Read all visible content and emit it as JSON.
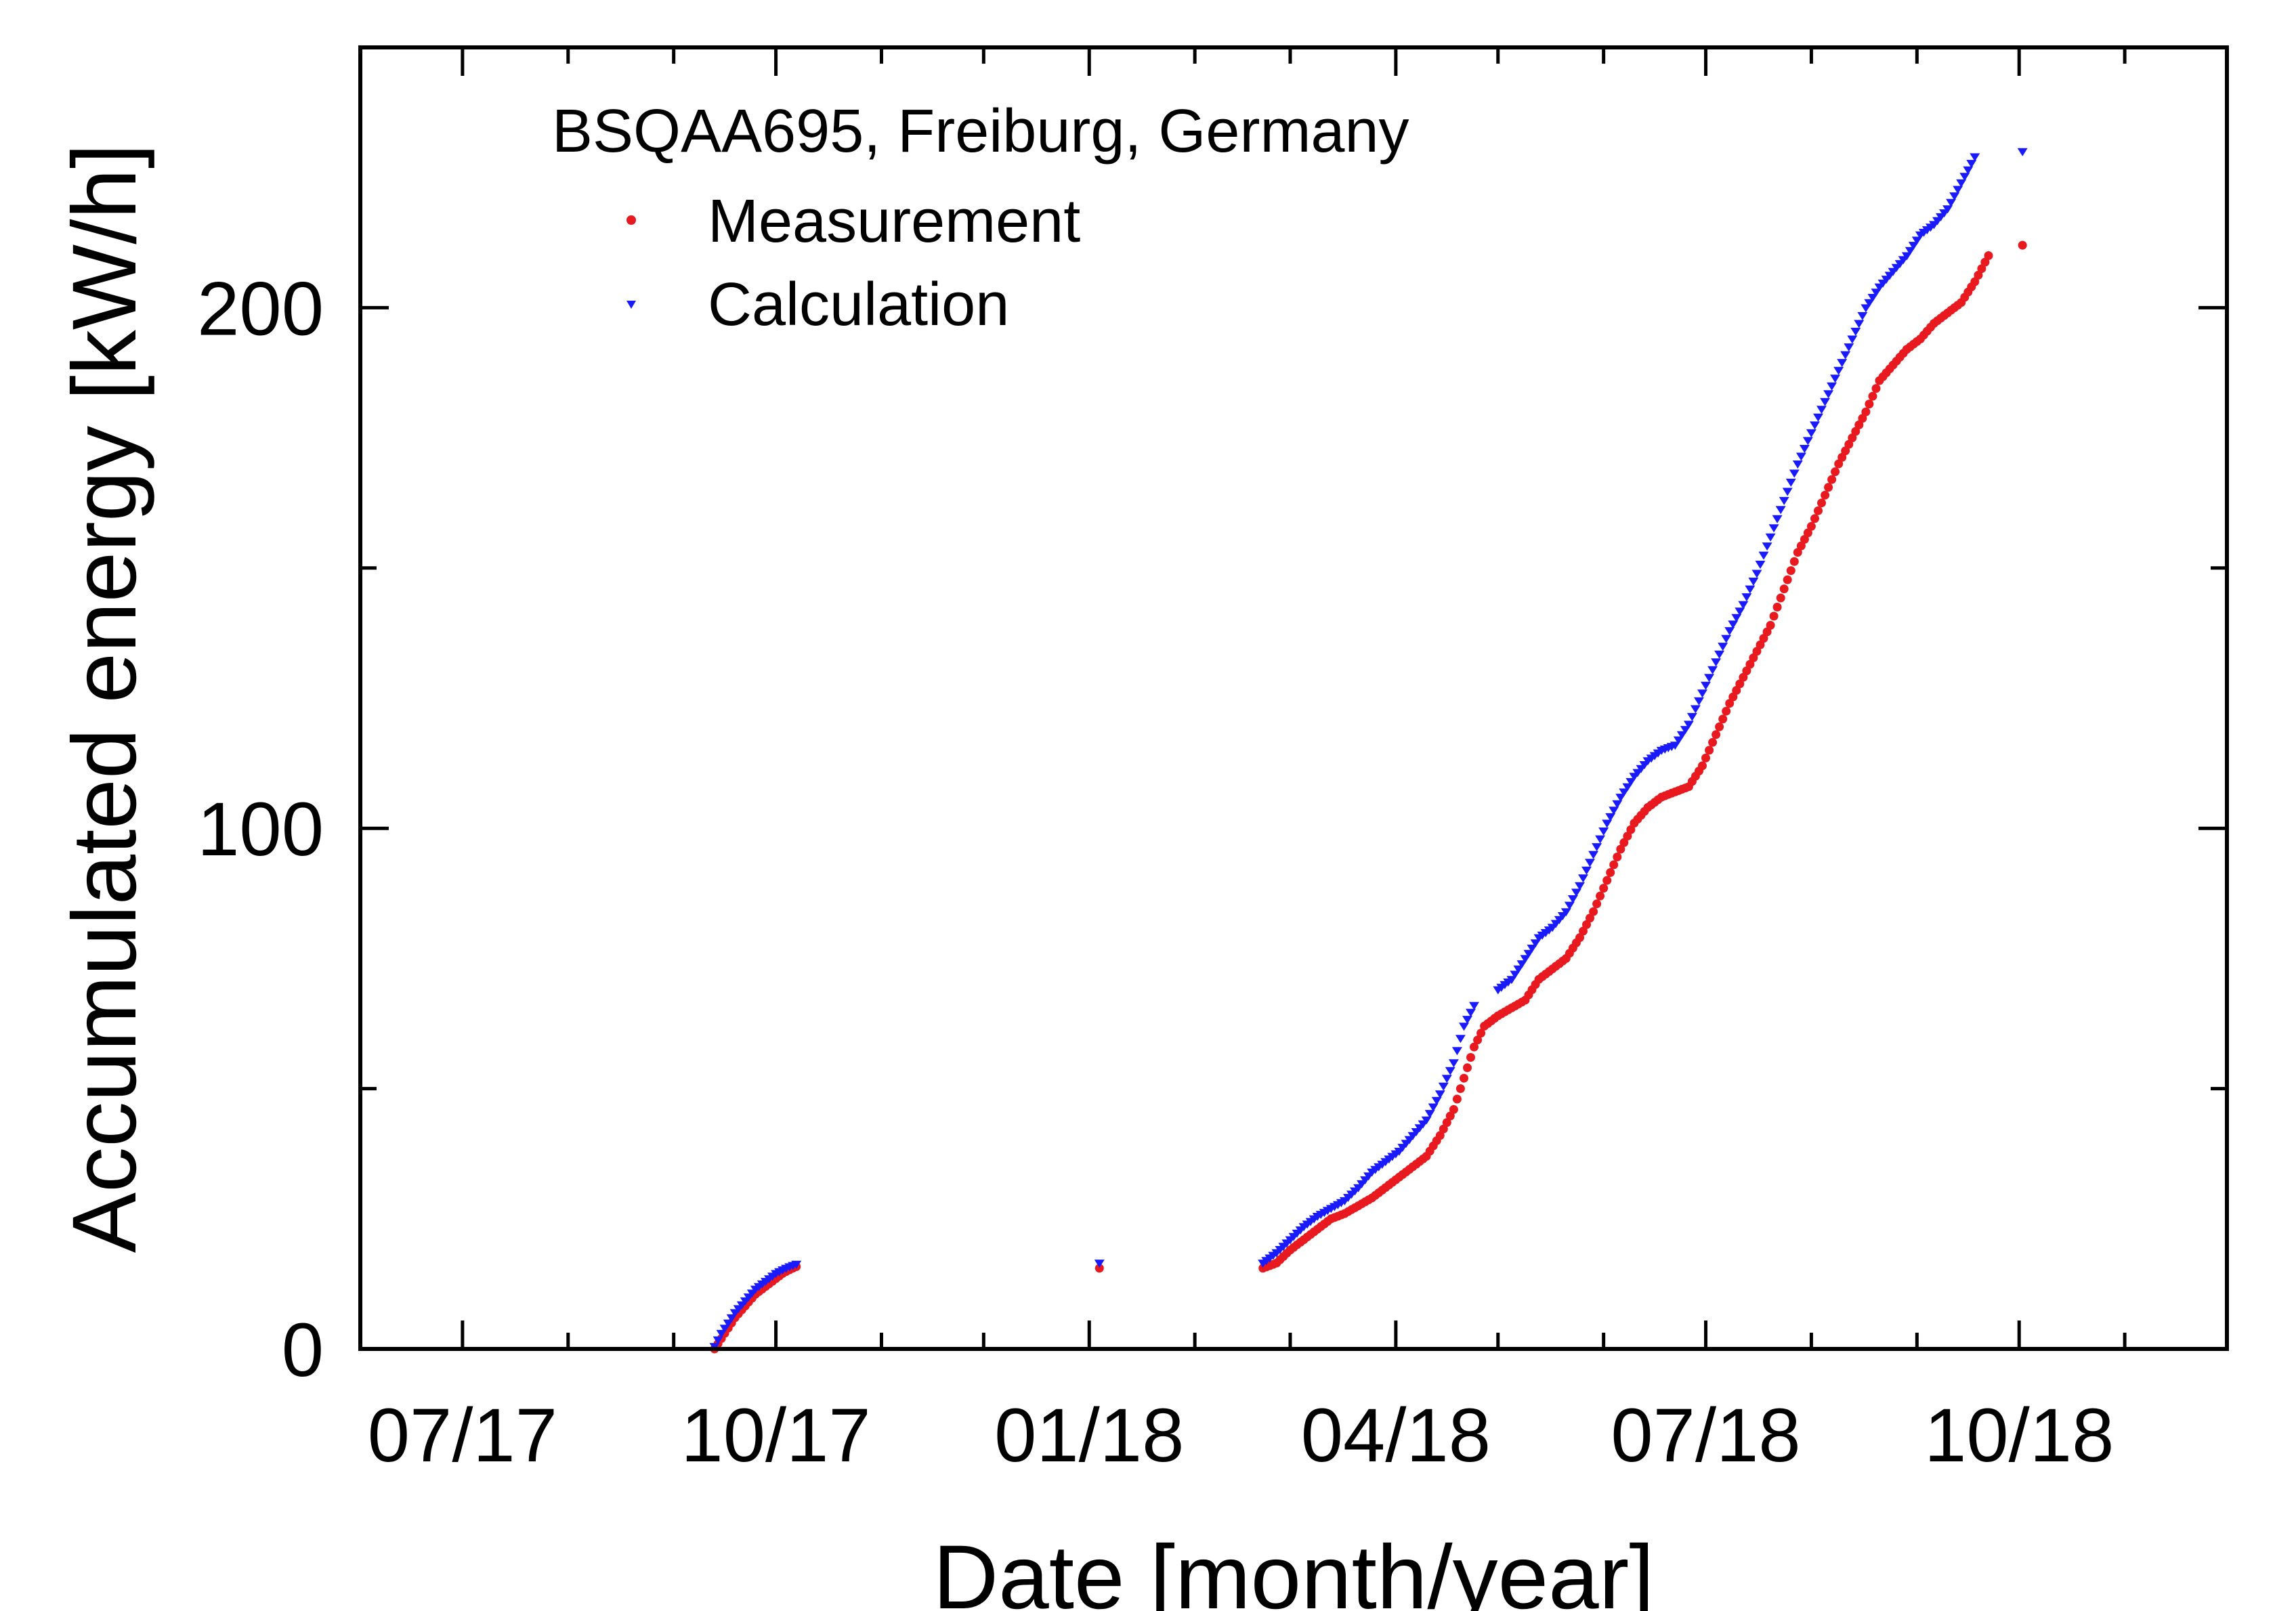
{
  "chart_data": {
    "type": "scatter",
    "title": "",
    "legend_title": "BSQAA695, Freiburg, Germany",
    "legend_position": "top-left",
    "grid": false,
    "xlabel": "Date [month/year]",
    "ylabel": "Accumulated energy [kW/h]",
    "xlim": [
      "2017-06-01",
      "2018-12-01"
    ],
    "ylim": [
      0,
      250
    ],
    "x_major_ticks": [
      "2017-07-01",
      "2017-10-01",
      "2018-01-01",
      "2018-04-01",
      "2018-07-01",
      "2018-10-01"
    ],
    "x_tick_labels": [
      "07/17",
      "10/17",
      "01/18",
      "04/18",
      "07/18",
      "10/18"
    ],
    "x_minor_ticks": [
      "2017-06-01",
      "2017-08-01",
      "2017-09-01",
      "2017-11-01",
      "2017-12-01",
      "2018-02-01",
      "2018-03-01",
      "2018-05-01",
      "2018-06-01",
      "2018-08-01",
      "2018-09-01",
      "2018-11-01",
      "2018-12-01"
    ],
    "y_major_ticks": [
      0,
      100,
      200
    ],
    "y_tick_labels": [
      "0",
      "100",
      "200"
    ],
    "y_minor_ticks": [
      50,
      150,
      250
    ],
    "series": [
      {
        "name": "Measurement",
        "color": "#e8191f",
        "marker": "dot",
        "points": [
          [
            "2017-09-13",
            0
          ],
          [
            "2017-09-15",
            2
          ],
          [
            "2017-09-17",
            4
          ],
          [
            "2017-09-19",
            6
          ],
          [
            "2017-09-21",
            7.5
          ],
          [
            "2017-09-23",
            9
          ],
          [
            "2017-09-25",
            10.5
          ],
          [
            "2017-09-27",
            11.5
          ],
          [
            "2017-09-29",
            12.5
          ],
          [
            "2017-10-01",
            13.5
          ],
          [
            "2017-10-03",
            14.5
          ],
          [
            "2017-10-05",
            15.2
          ],
          [
            "2017-10-07",
            15.8
          ],
          [
            "2018-01-04",
            15.5
          ],
          [
            "2018-02-21",
            15.5
          ],
          [
            "2018-02-25",
            16.5
          ],
          [
            "2018-03-01",
            19
          ],
          [
            "2018-03-05",
            21
          ],
          [
            "2018-03-09",
            23
          ],
          [
            "2018-03-13",
            25
          ],
          [
            "2018-03-17",
            26
          ],
          [
            "2018-03-21",
            27.5
          ],
          [
            "2018-03-25",
            29
          ],
          [
            "2018-03-29",
            31
          ],
          [
            "2018-04-02",
            33
          ],
          [
            "2018-04-06",
            35
          ],
          [
            "2018-04-10",
            37
          ],
          [
            "2018-04-14",
            41
          ],
          [
            "2018-04-18",
            46
          ],
          [
            "2018-04-21",
            52
          ],
          [
            "2018-04-24",
            58
          ],
          [
            "2018-04-27",
            62
          ],
          [
            "2018-05-01",
            64
          ],
          [
            "2018-05-05",
            65.5
          ],
          [
            "2018-05-09",
            67
          ],
          [
            "2018-05-13",
            71
          ],
          [
            "2018-05-17",
            73
          ],
          [
            "2018-05-21",
            75
          ],
          [
            "2018-05-25",
            79
          ],
          [
            "2018-05-29",
            84
          ],
          [
            "2018-06-02",
            90
          ],
          [
            "2018-06-06",
            96
          ],
          [
            "2018-06-10",
            101
          ],
          [
            "2018-06-14",
            104
          ],
          [
            "2018-06-18",
            106
          ],
          [
            "2018-06-22",
            107
          ],
          [
            "2018-06-26",
            108
          ],
          [
            "2018-06-30",
            112
          ],
          [
            "2018-07-04",
            118
          ],
          [
            "2018-07-08",
            124
          ],
          [
            "2018-07-12",
            129
          ],
          [
            "2018-07-16",
            134
          ],
          [
            "2018-07-20",
            139
          ],
          [
            "2018-07-24",
            146
          ],
          [
            "2018-07-28",
            153
          ],
          [
            "2018-08-01",
            158
          ],
          [
            "2018-08-05",
            164
          ],
          [
            "2018-08-09",
            170
          ],
          [
            "2018-08-13",
            175
          ],
          [
            "2018-08-17",
            180
          ],
          [
            "2018-08-21",
            186
          ],
          [
            "2018-08-25",
            189
          ],
          [
            "2018-08-29",
            192
          ],
          [
            "2018-09-02",
            194
          ],
          [
            "2018-09-06",
            197
          ],
          [
            "2018-09-10",
            199
          ],
          [
            "2018-09-14",
            201
          ],
          [
            "2018-09-18",
            205
          ],
          [
            "2018-09-22",
            210
          ],
          [
            "2018-10-02",
            212
          ]
        ]
      },
      {
        "name": "Calculation",
        "color": "#1a1aff",
        "marker": "triangle-down",
        "points": [
          [
            "2017-09-13",
            0.5
          ],
          [
            "2017-09-15",
            3
          ],
          [
            "2017-09-17",
            5
          ],
          [
            "2017-09-19",
            7
          ],
          [
            "2017-09-21",
            8.5
          ],
          [
            "2017-09-23",
            10
          ],
          [
            "2017-09-25",
            11.5
          ],
          [
            "2017-09-27",
            12.5
          ],
          [
            "2017-09-29",
            13.5
          ],
          [
            "2017-10-01",
            14.5
          ],
          [
            "2017-10-03",
            15.2
          ],
          [
            "2017-10-05",
            15.8
          ],
          [
            "2017-10-07",
            16.3
          ],
          [
            "2018-01-04",
            16.5
          ],
          [
            "2018-02-21",
            16.5
          ],
          [
            "2018-02-25",
            18.5
          ],
          [
            "2018-03-01",
            21
          ],
          [
            "2018-03-05",
            23.5
          ],
          [
            "2018-03-09",
            25.5
          ],
          [
            "2018-03-13",
            27
          ],
          [
            "2018-03-17",
            28.5
          ],
          [
            "2018-03-21",
            31
          ],
          [
            "2018-03-25",
            34
          ],
          [
            "2018-03-29",
            36
          ],
          [
            "2018-04-02",
            38
          ],
          [
            "2018-04-06",
            41
          ],
          [
            "2018-04-10",
            44
          ],
          [
            "2018-04-14",
            49
          ],
          [
            "2018-04-18",
            55
          ],
          [
            "2018-04-21",
            62
          ],
          [
            "2018-04-24",
            66
          ],
          [
            "2018-05-01",
            69
          ],
          [
            "2018-05-05",
            71
          ],
          [
            "2018-05-09",
            75
          ],
          [
            "2018-05-13",
            79
          ],
          [
            "2018-05-17",
            81
          ],
          [
            "2018-05-21",
            84
          ],
          [
            "2018-05-25",
            89
          ],
          [
            "2018-05-29",
            95
          ],
          [
            "2018-06-02",
            101
          ],
          [
            "2018-06-06",
            106
          ],
          [
            "2018-06-10",
            110
          ],
          [
            "2018-06-14",
            113
          ],
          [
            "2018-06-18",
            115
          ],
          [
            "2018-06-22",
            116
          ],
          [
            "2018-06-26",
            120
          ],
          [
            "2018-06-30",
            126
          ],
          [
            "2018-07-04",
            132
          ],
          [
            "2018-07-08",
            138
          ],
          [
            "2018-07-12",
            143
          ],
          [
            "2018-07-16",
            149
          ],
          [
            "2018-07-20",
            156
          ],
          [
            "2018-07-24",
            163
          ],
          [
            "2018-07-28",
            170
          ],
          [
            "2018-08-01",
            176
          ],
          [
            "2018-08-05",
            182
          ],
          [
            "2018-08-09",
            188
          ],
          [
            "2018-08-13",
            194
          ],
          [
            "2018-08-17",
            200
          ],
          [
            "2018-08-21",
            204
          ],
          [
            "2018-08-25",
            207
          ],
          [
            "2018-08-29",
            210
          ],
          [
            "2018-09-02",
            214
          ],
          [
            "2018-09-06",
            216
          ],
          [
            "2018-09-10",
            219
          ],
          [
            "2018-09-14",
            224
          ],
          [
            "2018-09-18",
            229
          ],
          [
            "2018-10-02",
            230
          ]
        ]
      }
    ]
  }
}
